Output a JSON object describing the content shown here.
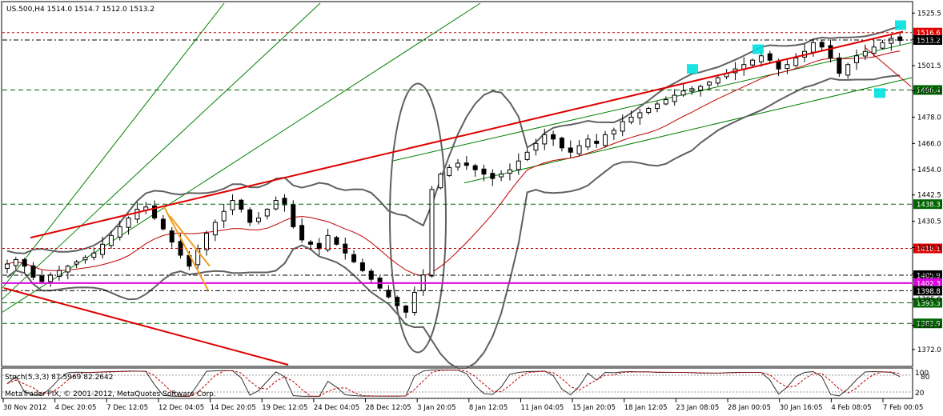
{
  "header": {
    "symbol_line": "US.500,H4  1514.0 1514.7 1512.0 1513.2"
  },
  "indicator": {
    "label": "Stoch(5,3,3) 87.5969 82.2642",
    "scale_top": "100",
    "scale_mid": "80",
    "scale_bottom": "20",
    "main_value": 87.5969,
    "signal_value": 82.2642
  },
  "copyright": "MetaTrader FIX, © 2001-2012, MetaQuotes Software Corp.",
  "colors": {
    "candle_up": "#ffffff",
    "candle_down": "#000000",
    "trend_red": "#e00000",
    "fib_orange": "#f0a020",
    "channel_green": "#008000",
    "bollinger_gray": "#606060",
    "magenta_line": "#e000e0",
    "cyan_box": "#00e0e0",
    "label_red_bg": "#e00000",
    "label_green_bg": "#006400",
    "label_black_bg": "#000000"
  },
  "chart_data": {
    "type": "candlestick",
    "symbol": "US.500",
    "timeframe": "H4",
    "last_quote": {
      "open": 1514.0,
      "high": 1514.7,
      "low": 1512.0,
      "close": 1513.2
    },
    "y_axis": {
      "range": [
        1365,
        1530
      ],
      "ticks": [
        1525.5,
        1513.5,
        1501.5,
        1490.0,
        1478.0,
        1466.0,
        1454.0,
        1442.5,
        1430.5,
        1418.5,
        1406.5,
        1395.0,
        1383.0,
        1372.0
      ]
    },
    "x_axis": {
      "ticks": [
        "30 Nov 2012",
        "4 Dec 20:05",
        "7 Dec 12:05",
        "12 Dec 04:05",
        "14 Dec 20:05",
        "19 Dec 12:05",
        "24 Dec 04:05",
        "28 Dec 12:05",
        "3 Jan 20:05",
        "8 Jan 12:05",
        "11 Jan 04:05",
        "15 Jan 20:05",
        "18 Jan 12:05",
        "23 Jan 08:05",
        "28 Jan 00:05",
        "30 Jan 16:05",
        "4 Feb 08:05",
        "7 Feb 00:05"
      ]
    },
    "price_levels": [
      {
        "value": 1516.6,
        "label": "1516.6",
        "style": "red"
      },
      {
        "value": 1513.2,
        "label": "1513.2",
        "style": "black"
      },
      {
        "value": 1490.4,
        "label": "1490.4",
        "style": "green"
      },
      {
        "value": 1438.3,
        "label": "1438.3",
        "style": "green"
      },
      {
        "value": 1418.1,
        "label": "1418.1",
        "style": "red"
      },
      {
        "value": 1405.9,
        "label": "1405.9",
        "style": "black"
      },
      {
        "value": 1402.3,
        "label": "1402.3",
        "style": "magenta"
      },
      {
        "value": 1398.8,
        "label": "1398.8",
        "style": "black"
      },
      {
        "value": 1393.3,
        "label": "1393.3",
        "style": "green"
      },
      {
        "value": 1383.9,
        "label": "1383.9",
        "style": "green"
      }
    ],
    "close_path": [
      1411,
      1413,
      1410,
      1405,
      1403,
      1406,
      1408,
      1410,
      1412,
      1414,
      1416,
      1420,
      1424,
      1428,
      1432,
      1436,
      1437,
      1432,
      1427,
      1421,
      1415,
      1410,
      1418,
      1425,
      1430,
      1435,
      1440,
      1436,
      1430,
      1432,
      1436,
      1440,
      1438,
      1428,
      1422,
      1420,
      1418,
      1424,
      1420,
      1416,
      1412,
      1408,
      1404,
      1400,
      1396,
      1392,
      1389,
      1398,
      1406,
      1445,
      1452,
      1455,
      1457,
      1456,
      1454,
      1452,
      1450,
      1452,
      1454,
      1458,
      1462,
      1466,
      1470,
      1468,
      1464,
      1462,
      1465,
      1468,
      1466,
      1470,
      1472,
      1476,
      1478,
      1480,
      1482,
      1484,
      1486,
      1488,
      1490,
      1491,
      1492,
      1494,
      1496,
      1498,
      1500,
      1502,
      1504,
      1506,
      1504,
      1500,
      1502,
      1505,
      1508,
      1512,
      1510,
      1505,
      1498,
      1502,
      1506,
      1508,
      1510,
      1512,
      1514,
      1513
    ]
  }
}
